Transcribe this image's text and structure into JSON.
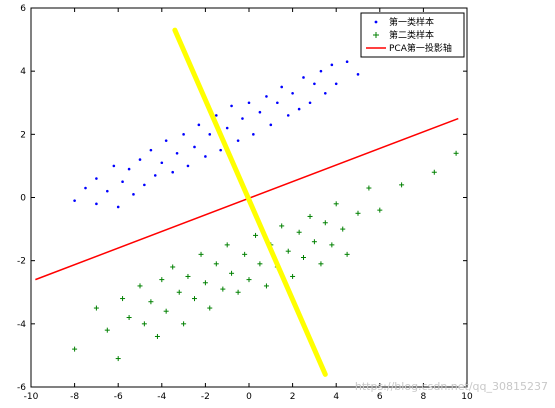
{
  "chart_data": {
    "type": "scatter",
    "xlim": [
      -10,
      10
    ],
    "ylim": [
      -6,
      6
    ],
    "x_ticks": [
      -10,
      -8,
      -6,
      -4,
      -2,
      0,
      2,
      4,
      6,
      8,
      10
    ],
    "y_ticks": [
      -6,
      -4,
      -2,
      0,
      2,
      4,
      6
    ],
    "grid": false,
    "legend_position": "top-right",
    "series": [
      {
        "name": "第一类样本",
        "marker": "dot",
        "color": "#0000ff",
        "points": [
          [
            -8.0,
            -0.1
          ],
          [
            -7.5,
            0.3
          ],
          [
            -7.0,
            -0.2
          ],
          [
            -7.0,
            0.6
          ],
          [
            -6.5,
            0.2
          ],
          [
            -6.2,
            1.0
          ],
          [
            -6.0,
            -0.3
          ],
          [
            -5.8,
            0.5
          ],
          [
            -5.5,
            0.9
          ],
          [
            -5.3,
            0.1
          ],
          [
            -5.0,
            1.2
          ],
          [
            -4.8,
            0.4
          ],
          [
            -4.5,
            1.5
          ],
          [
            -4.3,
            0.7
          ],
          [
            -4.0,
            1.1
          ],
          [
            -3.8,
            1.8
          ],
          [
            -3.5,
            0.8
          ],
          [
            -3.3,
            1.4
          ],
          [
            -3.0,
            2.0
          ],
          [
            -2.8,
            1.0
          ],
          [
            -2.5,
            1.6
          ],
          [
            -2.3,
            2.3
          ],
          [
            -2.0,
            1.3
          ],
          [
            -1.8,
            2.0
          ],
          [
            -1.5,
            2.6
          ],
          [
            -1.3,
            1.5
          ],
          [
            -1.0,
            2.2
          ],
          [
            -0.8,
            2.9
          ],
          [
            -0.5,
            1.8
          ],
          [
            -0.3,
            2.5
          ],
          [
            0.0,
            3.0
          ],
          [
            0.2,
            2.0
          ],
          [
            0.5,
            2.7
          ],
          [
            0.8,
            3.2
          ],
          [
            1.0,
            2.3
          ],
          [
            1.3,
            3.0
          ],
          [
            1.5,
            3.5
          ],
          [
            1.8,
            2.6
          ],
          [
            2.0,
            3.3
          ],
          [
            2.3,
            2.8
          ],
          [
            2.5,
            3.8
          ],
          [
            2.8,
            3.0
          ],
          [
            3.0,
            3.6
          ],
          [
            3.3,
            4.0
          ],
          [
            3.5,
            3.3
          ],
          [
            3.8,
            4.2
          ],
          [
            4.0,
            3.6
          ],
          [
            4.5,
            4.3
          ],
          [
            5.0,
            3.9
          ],
          [
            5.5,
            4.8
          ]
        ]
      },
      {
        "name": "第二类样本",
        "marker": "plus",
        "color": "#008000",
        "points": [
          [
            -8.0,
            -4.8
          ],
          [
            -7.0,
            -3.5
          ],
          [
            -6.5,
            -4.2
          ],
          [
            -6.0,
            -5.1
          ],
          [
            -5.8,
            -3.2
          ],
          [
            -5.5,
            -3.8
          ],
          [
            -5.0,
            -2.8
          ],
          [
            -4.8,
            -4.0
          ],
          [
            -4.5,
            -3.3
          ],
          [
            -4.2,
            -4.4
          ],
          [
            -4.0,
            -2.6
          ],
          [
            -3.8,
            -3.6
          ],
          [
            -3.5,
            -2.2
          ],
          [
            -3.2,
            -3.0
          ],
          [
            -3.0,
            -4.0
          ],
          [
            -2.8,
            -2.5
          ],
          [
            -2.5,
            -3.2
          ],
          [
            -2.2,
            -1.8
          ],
          [
            -2.0,
            -2.7
          ],
          [
            -1.8,
            -3.5
          ],
          [
            -1.5,
            -2.1
          ],
          [
            -1.2,
            -2.9
          ],
          [
            -1.0,
            -1.5
          ],
          [
            -0.8,
            -2.4
          ],
          [
            -0.5,
            -3.0
          ],
          [
            -0.2,
            -1.8
          ],
          [
            0.0,
            -2.6
          ],
          [
            0.3,
            -1.2
          ],
          [
            0.5,
            -2.1
          ],
          [
            0.8,
            -2.8
          ],
          [
            1.0,
            -1.5
          ],
          [
            1.3,
            -2.2
          ],
          [
            1.5,
            -0.9
          ],
          [
            1.8,
            -1.7
          ],
          [
            2.0,
            -2.5
          ],
          [
            2.3,
            -1.1
          ],
          [
            2.5,
            -1.9
          ],
          [
            2.8,
            -0.6
          ],
          [
            3.0,
            -1.4
          ],
          [
            3.3,
            -2.1
          ],
          [
            3.5,
            -0.8
          ],
          [
            3.8,
            -1.5
          ],
          [
            4.0,
            -0.2
          ],
          [
            4.3,
            -1.0
          ],
          [
            4.5,
            -1.8
          ],
          [
            5.0,
            -0.5
          ],
          [
            5.5,
            0.3
          ],
          [
            6.0,
            -0.4
          ],
          [
            7.0,
            0.4
          ],
          [
            8.5,
            0.8
          ],
          [
            9.5,
            1.4
          ]
        ]
      },
      {
        "name": "PCA第一投影轴",
        "type": "line",
        "color": "#ff0000",
        "points": [
          [
            -9.8,
            -2.6
          ],
          [
            9.6,
            2.5
          ]
        ]
      },
      {
        "name": "",
        "type": "line",
        "color": "#ffff00",
        "points": [
          [
            -3.4,
            5.3
          ],
          [
            3.5,
            -5.6
          ]
        ]
      }
    ]
  },
  "watermark": "https://blog.csdn.net/qq_30815237",
  "colors": {
    "axis": "#000000",
    "background": "#ffffff"
  }
}
